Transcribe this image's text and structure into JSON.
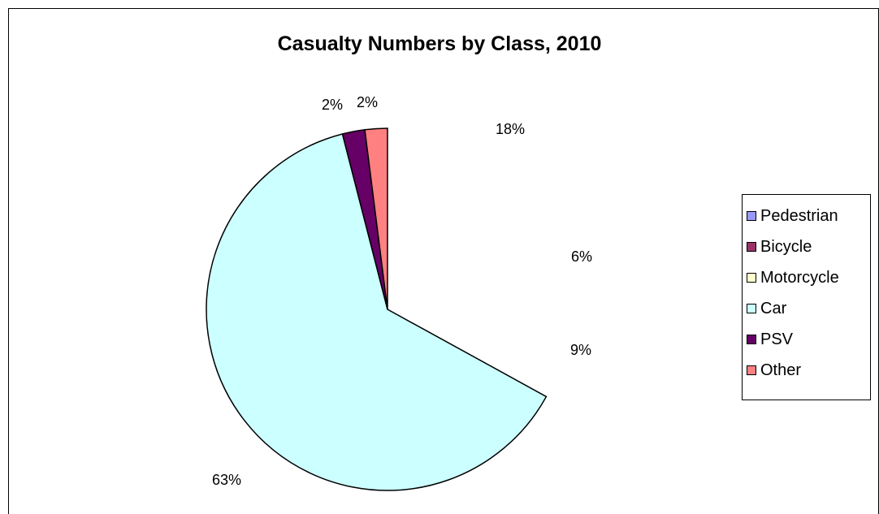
{
  "chart_data": {
    "type": "pie",
    "title": "Casualty Numbers by Class, 2010",
    "categories": [
      "Pedestrian",
      "Bicycle",
      "Motorcycle",
      "Car",
      "PSV",
      "Other"
    ],
    "values": [
      18,
      6,
      9,
      63,
      2,
      2
    ],
    "value_labels": [
      "18%",
      "6%",
      "9%",
      "63%",
      "2%",
      "2%"
    ],
    "colors": [
      "#9999FF",
      "#993366",
      "#FFFFCC",
      "#CCFFFF",
      "#660066",
      "#FF8080"
    ],
    "legend_position": "right"
  }
}
